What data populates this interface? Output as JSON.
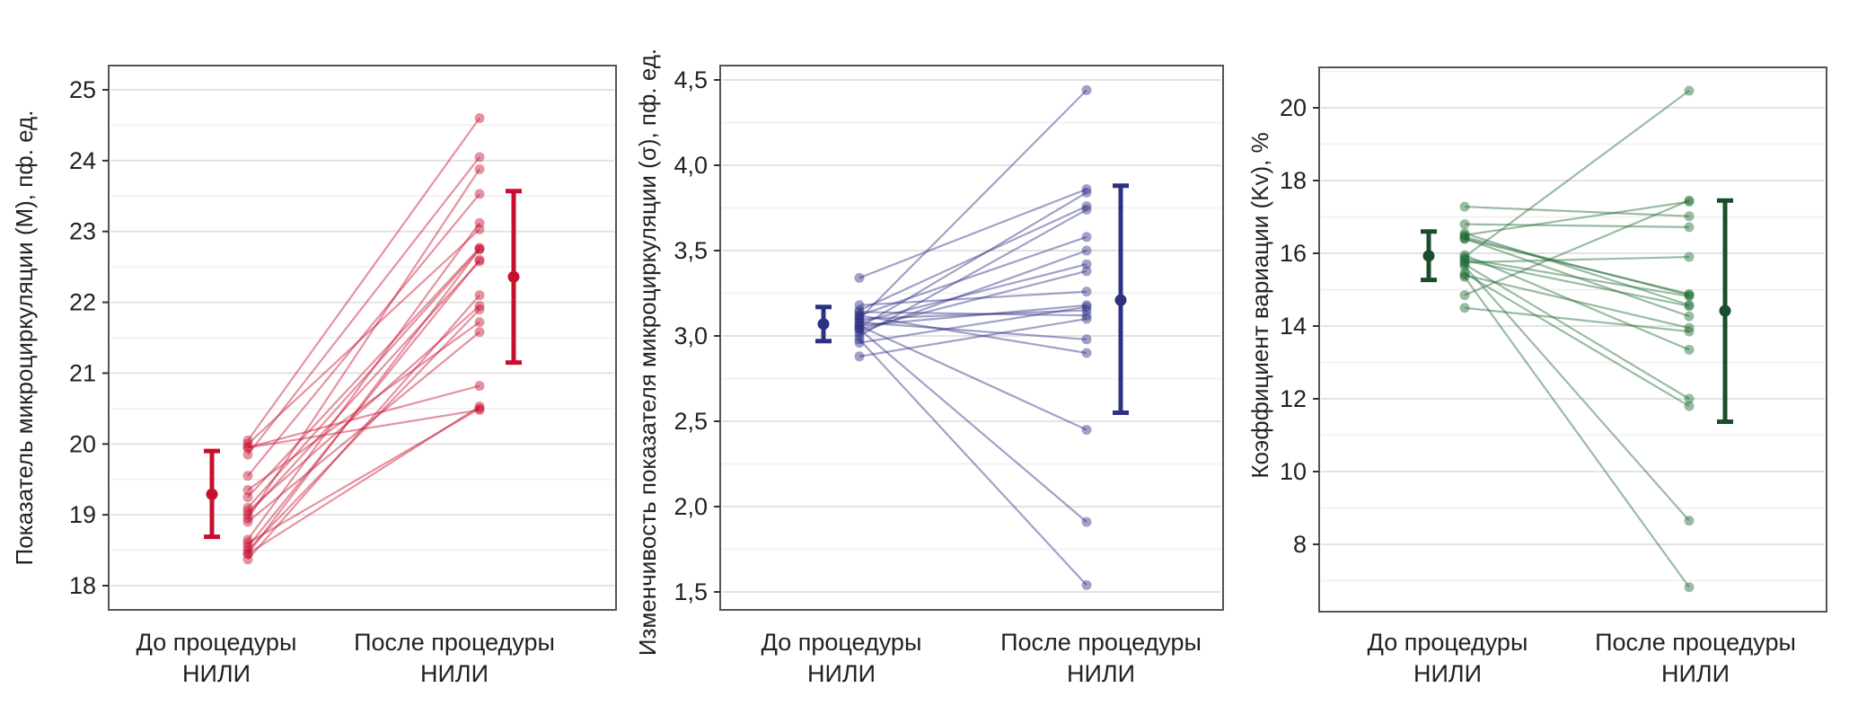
{
  "chart_data": [
    {
      "type": "line",
      "subtype": "paired-slopegraph",
      "ylabel": "Показатель микроциркуляции (М), пф. ед.",
      "categories": [
        {
          "line1": "До процедуры",
          "line2": "НИЛИ"
        },
        {
          "line1": "После процедуры",
          "line2": "НИЛИ"
        }
      ],
      "ylim": [
        17.7,
        25.4
      ],
      "yticks": [
        18,
        19,
        20,
        21,
        22,
        23,
        24,
        25
      ],
      "ytick_labels": [
        "18",
        "19",
        "20",
        "21",
        "22",
        "23",
        "24",
        "25"
      ],
      "grid": true,
      "color": "#c8102e",
      "pairs": [
        [
          20.05,
          24.6
        ],
        [
          19.85,
          24.05
        ],
        [
          18.95,
          23.88
        ],
        [
          19.55,
          23.53
        ],
        [
          18.65,
          23.12
        ],
        [
          20.0,
          23.03
        ],
        [
          19.25,
          22.77
        ],
        [
          18.45,
          22.75
        ],
        [
          19.0,
          22.58
        ],
        [
          18.37,
          22.1
        ],
        [
          19.05,
          21.95
        ],
        [
          18.5,
          21.9
        ],
        [
          19.35,
          21.72
        ],
        [
          18.9,
          21.58
        ],
        [
          19.95,
          20.82
        ],
        [
          18.45,
          20.53
        ],
        [
          19.95,
          20.48
        ],
        [
          18.55,
          22.6
        ],
        [
          19.1,
          22.75
        ],
        [
          18.6,
          20.5
        ]
      ],
      "summary": [
        {
          "mean": 19.29,
          "low": 18.69,
          "high": 19.9
        },
        {
          "mean": 22.36,
          "low": 21.15,
          "high": 23.57
        }
      ]
    },
    {
      "type": "line",
      "subtype": "paired-slopegraph",
      "ylabel": "Изменчивость показателя микроциркуляции (σ), пф. ед.",
      "categories": [
        {
          "line1": "До процедуры",
          "line2": "НИЛИ"
        },
        {
          "line1": "После процедуры",
          "line2": "НИЛИ"
        }
      ],
      "ylim": [
        1.4,
        4.58
      ],
      "yticks": [
        1.5,
        2.0,
        2.5,
        3.0,
        3.5,
        4.0,
        4.5
      ],
      "ytick_labels": [
        "1,5",
        "2,0",
        "2,5",
        "3,0",
        "3,5",
        "4,0",
        "4,5"
      ],
      "grid": true,
      "color": "#2e3082",
      "pairs": [
        [
          3.1,
          4.44
        ],
        [
          3.34,
          3.86
        ],
        [
          3.05,
          3.84
        ],
        [
          3.15,
          3.76
        ],
        [
          3.0,
          3.74
        ],
        [
          3.12,
          3.58
        ],
        [
          3.02,
          3.5
        ],
        [
          3.08,
          3.42
        ],
        [
          3.04,
          3.38
        ],
        [
          3.18,
          3.26
        ],
        [
          3.06,
          3.18
        ],
        [
          2.96,
          3.17
        ],
        [
          3.1,
          3.15
        ],
        [
          3.14,
          3.12
        ],
        [
          2.88,
          3.1
        ],
        [
          3.08,
          2.98
        ],
        [
          3.12,
          2.9
        ],
        [
          3.06,
          2.45
        ],
        [
          3.04,
          1.91
        ],
        [
          2.98,
          1.54
        ]
      ],
      "summary": [
        {
          "mean": 3.07,
          "low": 2.97,
          "high": 3.17
        },
        {
          "mean": 3.21,
          "low": 2.55,
          "high": 3.88
        }
      ]
    },
    {
      "type": "line",
      "subtype": "paired-slopegraph",
      "ylabel": "Коэффициент вариации (Kv), %",
      "categories": [
        {
          "line1": "До процедуры",
          "line2": "НИЛИ"
        },
        {
          "line1": "После процедуры",
          "line2": "НИЛИ"
        }
      ],
      "ylim": [
        6.2,
        21.1
      ],
      "yticks": [
        8,
        10,
        12,
        14,
        16,
        18,
        20
      ],
      "ytick_labels": [
        "8",
        "10",
        "12",
        "14",
        "16",
        "18",
        "20"
      ],
      "grid": true,
      "color": "#1f6b34",
      "pairs": [
        [
          15.9,
          20.47
        ],
        [
          14.85,
          17.45
        ],
        [
          16.5,
          17.42
        ],
        [
          17.28,
          17.02
        ],
        [
          16.8,
          16.72
        ],
        [
          15.75,
          15.9
        ],
        [
          16.4,
          14.88
        ],
        [
          16.45,
          14.85
        ],
        [
          15.85,
          14.82
        ],
        [
          16.55,
          14.58
        ],
        [
          15.8,
          14.55
        ],
        [
          16.4,
          14.27
        ],
        [
          15.4,
          13.95
        ],
        [
          14.5,
          13.85
        ],
        [
          15.95,
          13.35
        ],
        [
          15.7,
          12.0
        ],
        [
          15.45,
          11.8
        ],
        [
          15.65,
          8.65
        ],
        [
          15.35,
          6.82
        ]
      ],
      "summary": [
        {
          "mean": 15.93,
          "low": 15.27,
          "high": 16.6
        },
        {
          "mean": 14.42,
          "low": 11.37,
          "high": 17.45
        }
      ]
    }
  ]
}
